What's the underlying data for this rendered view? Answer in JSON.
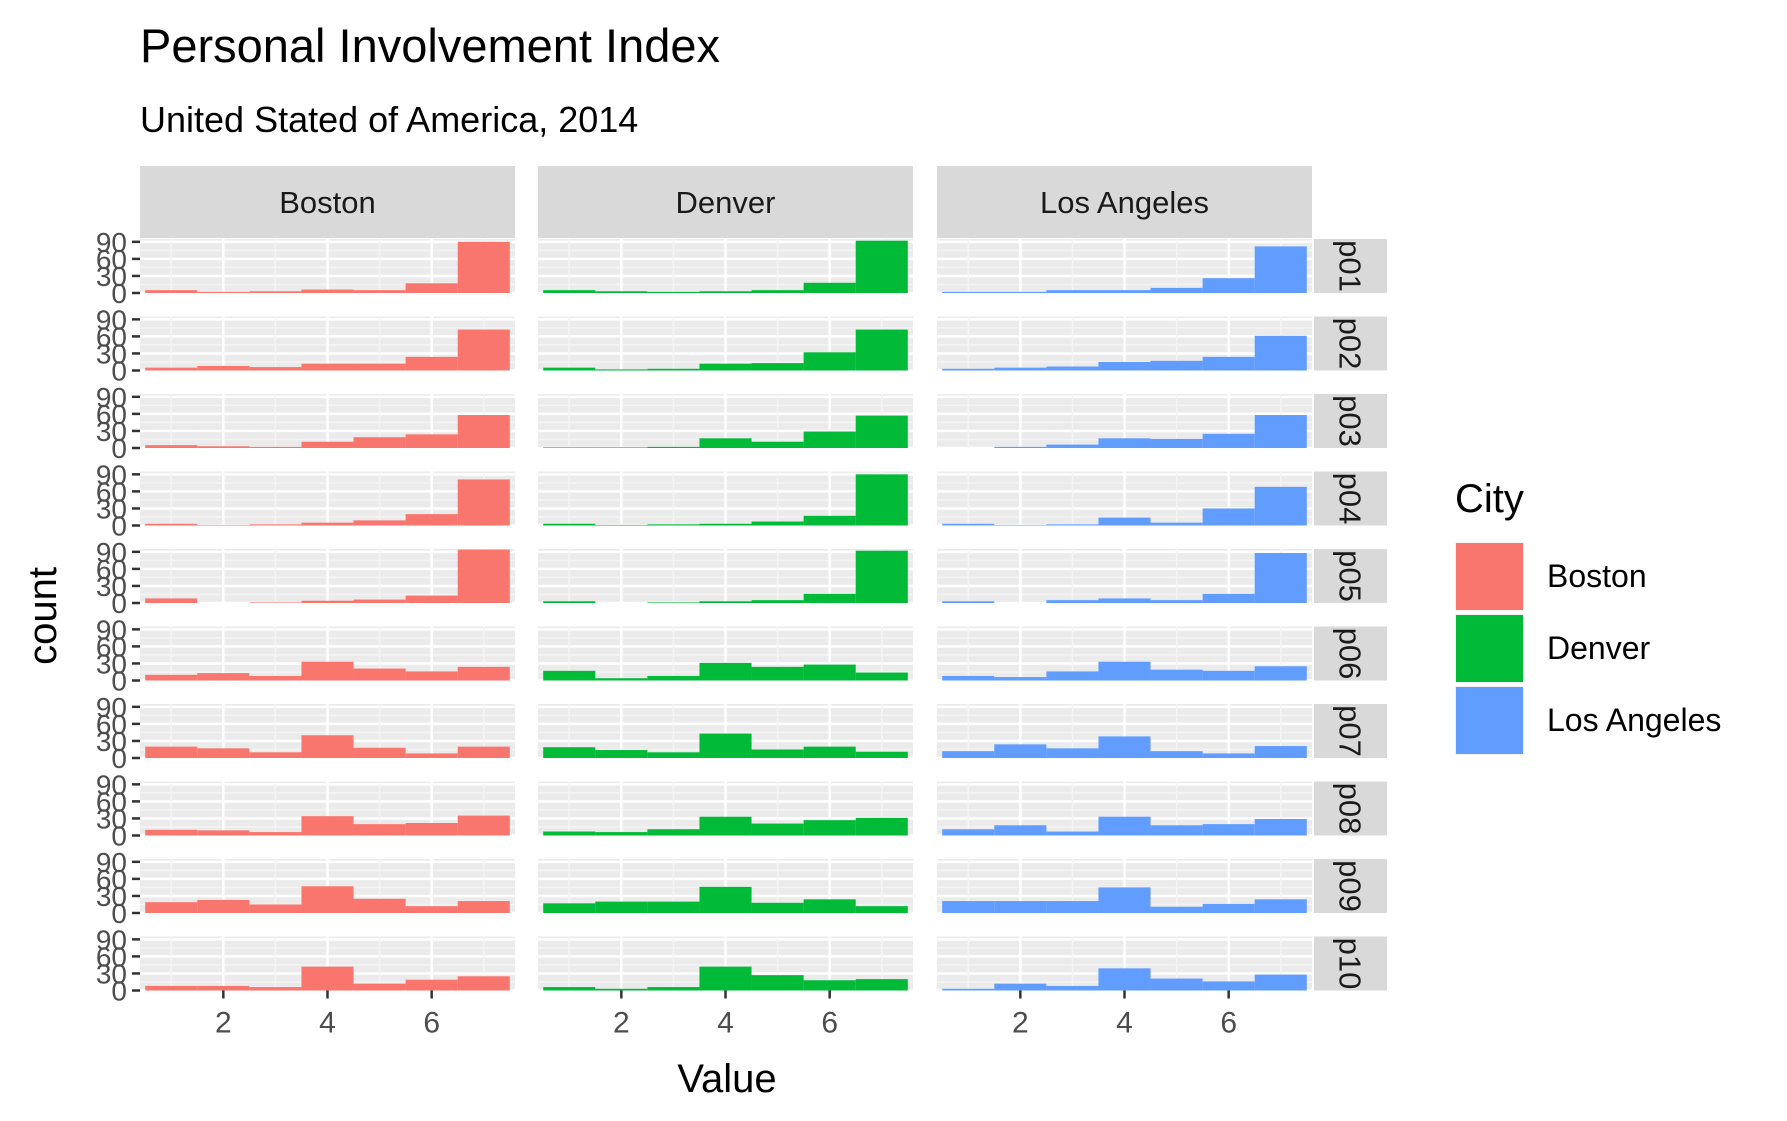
{
  "chart_data": {
    "type": "bar",
    "title": "Personal Involvement Index",
    "subtitle": "United Stated of America, 2014",
    "xlabel": "Value",
    "ylabel": "count",
    "x": [
      1,
      2,
      3,
      4,
      5,
      6,
      7
    ],
    "xlim": [
      0.4,
      7.6
    ],
    "x_ticks": [
      "2",
      "4",
      "6"
    ],
    "ylim": [
      0,
      95
    ],
    "y_ticks": [
      "0",
      "30",
      "60",
      "90"
    ],
    "facet_columns": [
      "Boston",
      "Denver",
      "Los Angeles"
    ],
    "facet_rows": [
      "p01",
      "p02",
      "p03",
      "p04",
      "p05",
      "p06",
      "p07",
      "p08",
      "p09",
      "p10"
    ],
    "grid": true,
    "legend": {
      "title": "City",
      "position": "right",
      "items": [
        {
          "name": "Boston",
          "color": "#F8766D"
        },
        {
          "name": "Denver",
          "color": "#00BA38"
        },
        {
          "name": "Los Angeles",
          "color": "#619CFF"
        }
      ]
    },
    "panels": [
      {
        "row": "p01",
        "city": "Boston",
        "values": [
          5,
          2,
          3,
          6,
          5,
          17,
          90
        ]
      },
      {
        "row": "p01",
        "city": "Denver",
        "values": [
          5,
          3,
          2,
          3,
          5,
          18,
          92
        ]
      },
      {
        "row": "p01",
        "city": "Los Angeles",
        "values": [
          2,
          2,
          5,
          5,
          9,
          26,
          82
        ]
      },
      {
        "row": "p02",
        "city": "Boston",
        "values": [
          5,
          8,
          6,
          12,
          12,
          24,
          72
        ]
      },
      {
        "row": "p02",
        "city": "Denver",
        "values": [
          5,
          2,
          3,
          12,
          13,
          32,
          72
        ]
      },
      {
        "row": "p02",
        "city": "Los Angeles",
        "values": [
          3,
          5,
          7,
          15,
          17,
          24,
          61
        ]
      },
      {
        "row": "p03",
        "city": "Boston",
        "values": [
          5,
          3,
          2,
          11,
          19,
          24,
          58
        ]
      },
      {
        "row": "p03",
        "city": "Denver",
        "values": [
          1,
          1,
          2,
          17,
          11,
          29,
          57
        ]
      },
      {
        "row": "p03",
        "city": "Los Angeles",
        "values": [
          0,
          2,
          6,
          17,
          16,
          25,
          58
        ]
      },
      {
        "row": "p04",
        "city": "Boston",
        "values": [
          3,
          1,
          2,
          5,
          9,
          20,
          81
        ]
      },
      {
        "row": "p04",
        "city": "Denver",
        "values": [
          3,
          1,
          2,
          3,
          7,
          17,
          90
        ]
      },
      {
        "row": "p04",
        "city": "Los Angeles",
        "values": [
          3,
          1,
          2,
          14,
          5,
          30,
          68
        ]
      },
      {
        "row": "p05",
        "city": "Boston",
        "values": [
          8,
          0,
          1,
          4,
          6,
          13,
          94
        ]
      },
      {
        "row": "p05",
        "city": "Denver",
        "values": [
          3,
          0,
          1,
          3,
          5,
          16,
          92
        ]
      },
      {
        "row": "p05",
        "city": "Los Angeles",
        "values": [
          3,
          0,
          5,
          8,
          5,
          16,
          88
        ]
      },
      {
        "row": "p06",
        "city": "Boston",
        "values": [
          10,
          13,
          8,
          33,
          21,
          16,
          24
        ]
      },
      {
        "row": "p06",
        "city": "Denver",
        "values": [
          17,
          4,
          8,
          31,
          24,
          28,
          14
        ]
      },
      {
        "row": "p06",
        "city": "Los Angeles",
        "values": [
          8,
          6,
          16,
          33,
          19,
          17,
          25
        ]
      },
      {
        "row": "p07",
        "city": "Boston",
        "values": [
          20,
          17,
          10,
          40,
          18,
          8,
          20
        ]
      },
      {
        "row": "p07",
        "city": "Denver",
        "values": [
          19,
          14,
          10,
          43,
          15,
          20,
          11
        ]
      },
      {
        "row": "p07",
        "city": "Los Angeles",
        "values": [
          12,
          24,
          17,
          38,
          12,
          8,
          21
        ]
      },
      {
        "row": "p08",
        "city": "Boston",
        "values": [
          10,
          9,
          6,
          34,
          20,
          22,
          35
        ]
      },
      {
        "row": "p08",
        "city": "Denver",
        "values": [
          7,
          6,
          11,
          33,
          21,
          27,
          31
        ]
      },
      {
        "row": "p08",
        "city": "Los Angeles",
        "values": [
          11,
          18,
          7,
          33,
          18,
          20,
          29
        ]
      },
      {
        "row": "p09",
        "city": "Boston",
        "values": [
          19,
          23,
          15,
          47,
          25,
          12,
          21
        ]
      },
      {
        "row": "p09",
        "city": "Denver",
        "values": [
          17,
          20,
          20,
          46,
          18,
          24,
          12
        ]
      },
      {
        "row": "p09",
        "city": "Los Angeles",
        "values": [
          21,
          21,
          21,
          45,
          11,
          16,
          24
        ]
      },
      {
        "row": "p10",
        "city": "Boston",
        "values": [
          8,
          8,
          6,
          42,
          12,
          19,
          25
        ]
      },
      {
        "row": "p10",
        "city": "Denver",
        "values": [
          6,
          3,
          6,
          42,
          27,
          18,
          20
        ]
      },
      {
        "row": "p10",
        "city": "Los Angeles",
        "values": [
          3,
          12,
          8,
          39,
          21,
          16,
          28
        ]
      }
    ]
  }
}
